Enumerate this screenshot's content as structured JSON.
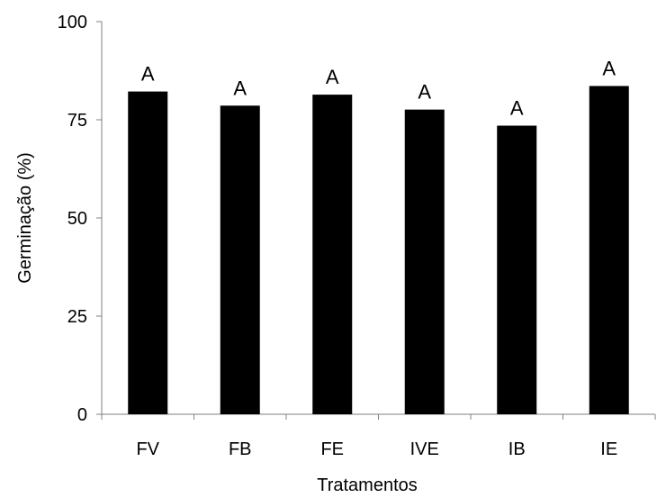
{
  "chart_data": {
    "type": "bar",
    "categories": [
      "FV",
      "FB",
      "FE",
      "IVE",
      "IB",
      "IE"
    ],
    "values": [
      82.2,
      78.6,
      81.4,
      77.6,
      73.5,
      83.6
    ],
    "data_labels": [
      "A",
      "A",
      "A",
      "A",
      "A",
      "A"
    ],
    "xlabel": "Tratamentos",
    "ylabel": "Germinação (%)",
    "ylim": [
      0,
      100
    ],
    "yticks": [
      0,
      25,
      50,
      75,
      100
    ],
    "grid": false,
    "bar_color": "#000000"
  }
}
